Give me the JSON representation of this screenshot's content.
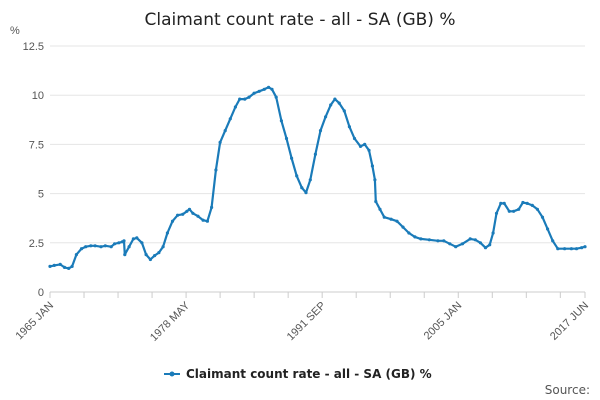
{
  "chart_data": {
    "type": "line",
    "title": "Claimant count rate - all - SA (GB) %",
    "y_unit": "%",
    "ylim": [
      0,
      12.5
    ],
    "y_ticks": [
      "0",
      "2.5",
      "5",
      "7.5",
      "10",
      "12.5"
    ],
    "xlim": [
      "1965-01",
      "2017-06"
    ],
    "x_tick_labels": [
      {
        "date": "1965-01",
        "label": "1965 JAN"
      },
      {
        "date": "1978-05",
        "label": "1978 MAY"
      },
      {
        "date": "1991-09",
        "label": "1991 SEP"
      },
      {
        "date": "2005-01",
        "label": "2005 JAN"
      },
      {
        "date": "2017-06",
        "label": "2017 JUN"
      }
    ],
    "x_minor_tick_dates": [
      "1965-01",
      "1968-05",
      "1971-09",
      "1975-01",
      "1978-05",
      "1981-09",
      "1985-01",
      "1988-05",
      "1991-09",
      "1995-01",
      "1998-05",
      "2001-09",
      "2005-01",
      "2008-05",
      "2011-09",
      "2015-01",
      "2017-06"
    ],
    "grid": "horizontal",
    "legend_position": "bottom",
    "source_label": "Source:",
    "colors": {
      "series": "#1a7bb9",
      "grid": "#e5e5e5",
      "axis": "#cccccc"
    },
    "series": [
      {
        "name": "Claimant count rate - all - SA (GB) %",
        "points": [
          [
            "1965-01",
            1.3
          ],
          [
            "1965-06",
            1.35
          ],
          [
            "1966-01",
            1.4
          ],
          [
            "1966-06",
            1.25
          ],
          [
            "1966-11",
            1.2
          ],
          [
            "1967-03",
            1.3
          ],
          [
            "1967-08",
            1.9
          ],
          [
            "1968-02",
            2.2
          ],
          [
            "1968-07",
            2.3
          ],
          [
            "1969-01",
            2.35
          ],
          [
            "1969-06",
            2.35
          ],
          [
            "1970-01",
            2.3
          ],
          [
            "1970-06",
            2.35
          ],
          [
            "1971-01",
            2.3
          ],
          [
            "1971-05",
            2.45
          ],
          [
            "1971-10",
            2.5
          ],
          [
            "1972-02",
            2.55
          ],
          [
            "1972-04",
            2.6
          ],
          [
            "1972-05",
            1.9
          ],
          [
            "1972-10",
            2.3
          ],
          [
            "1973-03",
            2.7
          ],
          [
            "1973-07",
            2.75
          ],
          [
            "1974-01",
            2.5
          ],
          [
            "1974-06",
            1.9
          ],
          [
            "1974-11",
            1.65
          ],
          [
            "1975-04",
            1.85
          ],
          [
            "1975-09",
            2.0
          ],
          [
            "1976-02",
            2.3
          ],
          [
            "1976-07",
            3.0
          ],
          [
            "1977-01",
            3.6
          ],
          [
            "1977-07",
            3.9
          ],
          [
            "1978-01",
            3.95
          ],
          [
            "1978-06",
            4.1
          ],
          [
            "1978-09",
            4.2
          ],
          [
            "1979-01",
            4.0
          ],
          [
            "1979-07",
            3.85
          ],
          [
            "1980-01",
            3.65
          ],
          [
            "1980-06",
            3.6
          ],
          [
            "1980-11",
            4.3
          ],
          [
            "1981-04",
            6.2
          ],
          [
            "1981-09",
            7.6
          ],
          [
            "1982-03",
            8.2
          ],
          [
            "1982-09",
            8.8
          ],
          [
            "1983-03",
            9.4
          ],
          [
            "1983-08",
            9.8
          ],
          [
            "1984-02",
            9.8
          ],
          [
            "1984-07",
            9.9
          ],
          [
            "1985-01",
            10.1
          ],
          [
            "1985-07",
            10.2
          ],
          [
            "1986-01",
            10.3
          ],
          [
            "1986-06",
            10.4
          ],
          [
            "1986-10",
            10.3
          ],
          [
            "1987-03",
            9.9
          ],
          [
            "1987-09",
            8.7
          ],
          [
            "1988-03",
            7.8
          ],
          [
            "1988-09",
            6.8
          ],
          [
            "1989-03",
            5.9
          ],
          [
            "1989-09",
            5.3
          ],
          [
            "1990-02",
            5.05
          ],
          [
            "1990-07",
            5.7
          ],
          [
            "1991-01",
            7.0
          ],
          [
            "1991-07",
            8.2
          ],
          [
            "1992-01",
            8.9
          ],
          [
            "1992-07",
            9.5
          ],
          [
            "1992-12",
            9.8
          ],
          [
            "1993-05",
            9.6
          ],
          [
            "1993-11",
            9.2
          ],
          [
            "1994-05",
            8.4
          ],
          [
            "1994-11",
            7.8
          ],
          [
            "1995-06",
            7.4
          ],
          [
            "1995-11",
            7.5
          ],
          [
            "1996-04",
            7.2
          ],
          [
            "1996-08",
            6.4
          ],
          [
            "1996-11",
            5.7
          ],
          [
            "1996-12",
            4.6
          ],
          [
            "1997-05",
            4.2
          ],
          [
            "1997-10",
            3.8
          ],
          [
            "1998-06",
            3.7
          ],
          [
            "1999-01",
            3.6
          ],
          [
            "1999-08",
            3.3
          ],
          [
            "2000-03",
            3.0
          ],
          [
            "2000-10",
            2.8
          ],
          [
            "2001-05",
            2.7
          ],
          [
            "2002-03",
            2.65
          ],
          [
            "2003-01",
            2.6
          ],
          [
            "2003-08",
            2.6
          ],
          [
            "2004-03",
            2.45
          ],
          [
            "2004-10",
            2.3
          ],
          [
            "2005-06",
            2.45
          ],
          [
            "2006-03",
            2.7
          ],
          [
            "2006-09",
            2.65
          ],
          [
            "2007-03",
            2.5
          ],
          [
            "2007-09",
            2.25
          ],
          [
            "2008-02",
            2.4
          ],
          [
            "2008-06",
            3.0
          ],
          [
            "2008-10",
            4.0
          ],
          [
            "2009-03",
            4.5
          ],
          [
            "2009-07",
            4.5
          ],
          [
            "2010-01",
            4.1
          ],
          [
            "2010-06",
            4.1
          ],
          [
            "2010-12",
            4.2
          ],
          [
            "2011-05",
            4.55
          ],
          [
            "2011-10",
            4.5
          ],
          [
            "2012-04",
            4.4
          ],
          [
            "2012-10",
            4.2
          ],
          [
            "2013-04",
            3.8
          ],
          [
            "2013-10",
            3.2
          ],
          [
            "2014-04",
            2.6
          ],
          [
            "2014-10",
            2.2
          ],
          [
            "2015-06",
            2.2
          ],
          [
            "2016-02",
            2.2
          ],
          [
            "2016-08",
            2.2
          ],
          [
            "2017-02",
            2.25
          ],
          [
            "2017-06",
            2.3
          ]
        ]
      }
    ]
  }
}
